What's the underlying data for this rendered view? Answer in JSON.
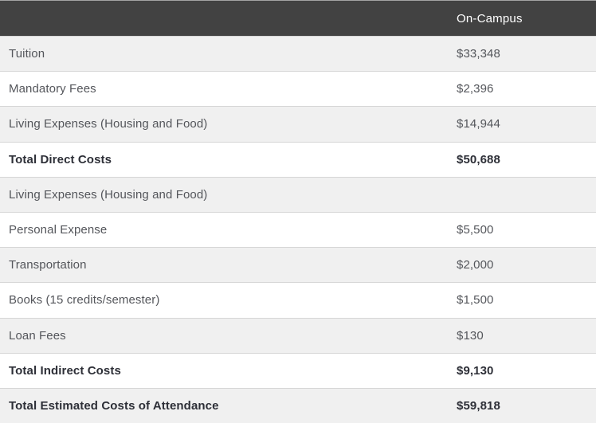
{
  "table": {
    "header": {
      "value_column_label": "On-Campus"
    },
    "rows": [
      {
        "label": "Tuition",
        "value": "$33,348",
        "bold": false
      },
      {
        "label": "Mandatory Fees",
        "value": "$2,396",
        "bold": false
      },
      {
        "label": "Living Expenses (Housing and Food)",
        "value": "$14,944",
        "bold": false
      },
      {
        "label": "Total Direct Costs",
        "value": "$50,688",
        "bold": true
      },
      {
        "label": "Living Expenses (Housing and Food)",
        "value": "",
        "bold": false
      },
      {
        "label": "Personal Expense",
        "value": "$5,500",
        "bold": false
      },
      {
        "label": "Transportation",
        "value": "$2,000",
        "bold": false
      },
      {
        "label": "Books (15 credits/semester)",
        "value": "$1,500",
        "bold": false
      },
      {
        "label": "Loan Fees",
        "value": "$130",
        "bold": false
      },
      {
        "label": "Total Indirect Costs",
        "value": "$9,130",
        "bold": true
      },
      {
        "label": "Total Estimated Costs of Attendance",
        "value": "$59,818",
        "bold": true
      }
    ],
    "colors": {
      "header_bg": "#424242",
      "header_text": "#ffffff",
      "row_alt_bg": "#f0f0f0",
      "row_bg": "#ffffff",
      "row_border": "#d6d6d6",
      "text": "#54565b",
      "bold_text": "#2d2f37"
    }
  }
}
